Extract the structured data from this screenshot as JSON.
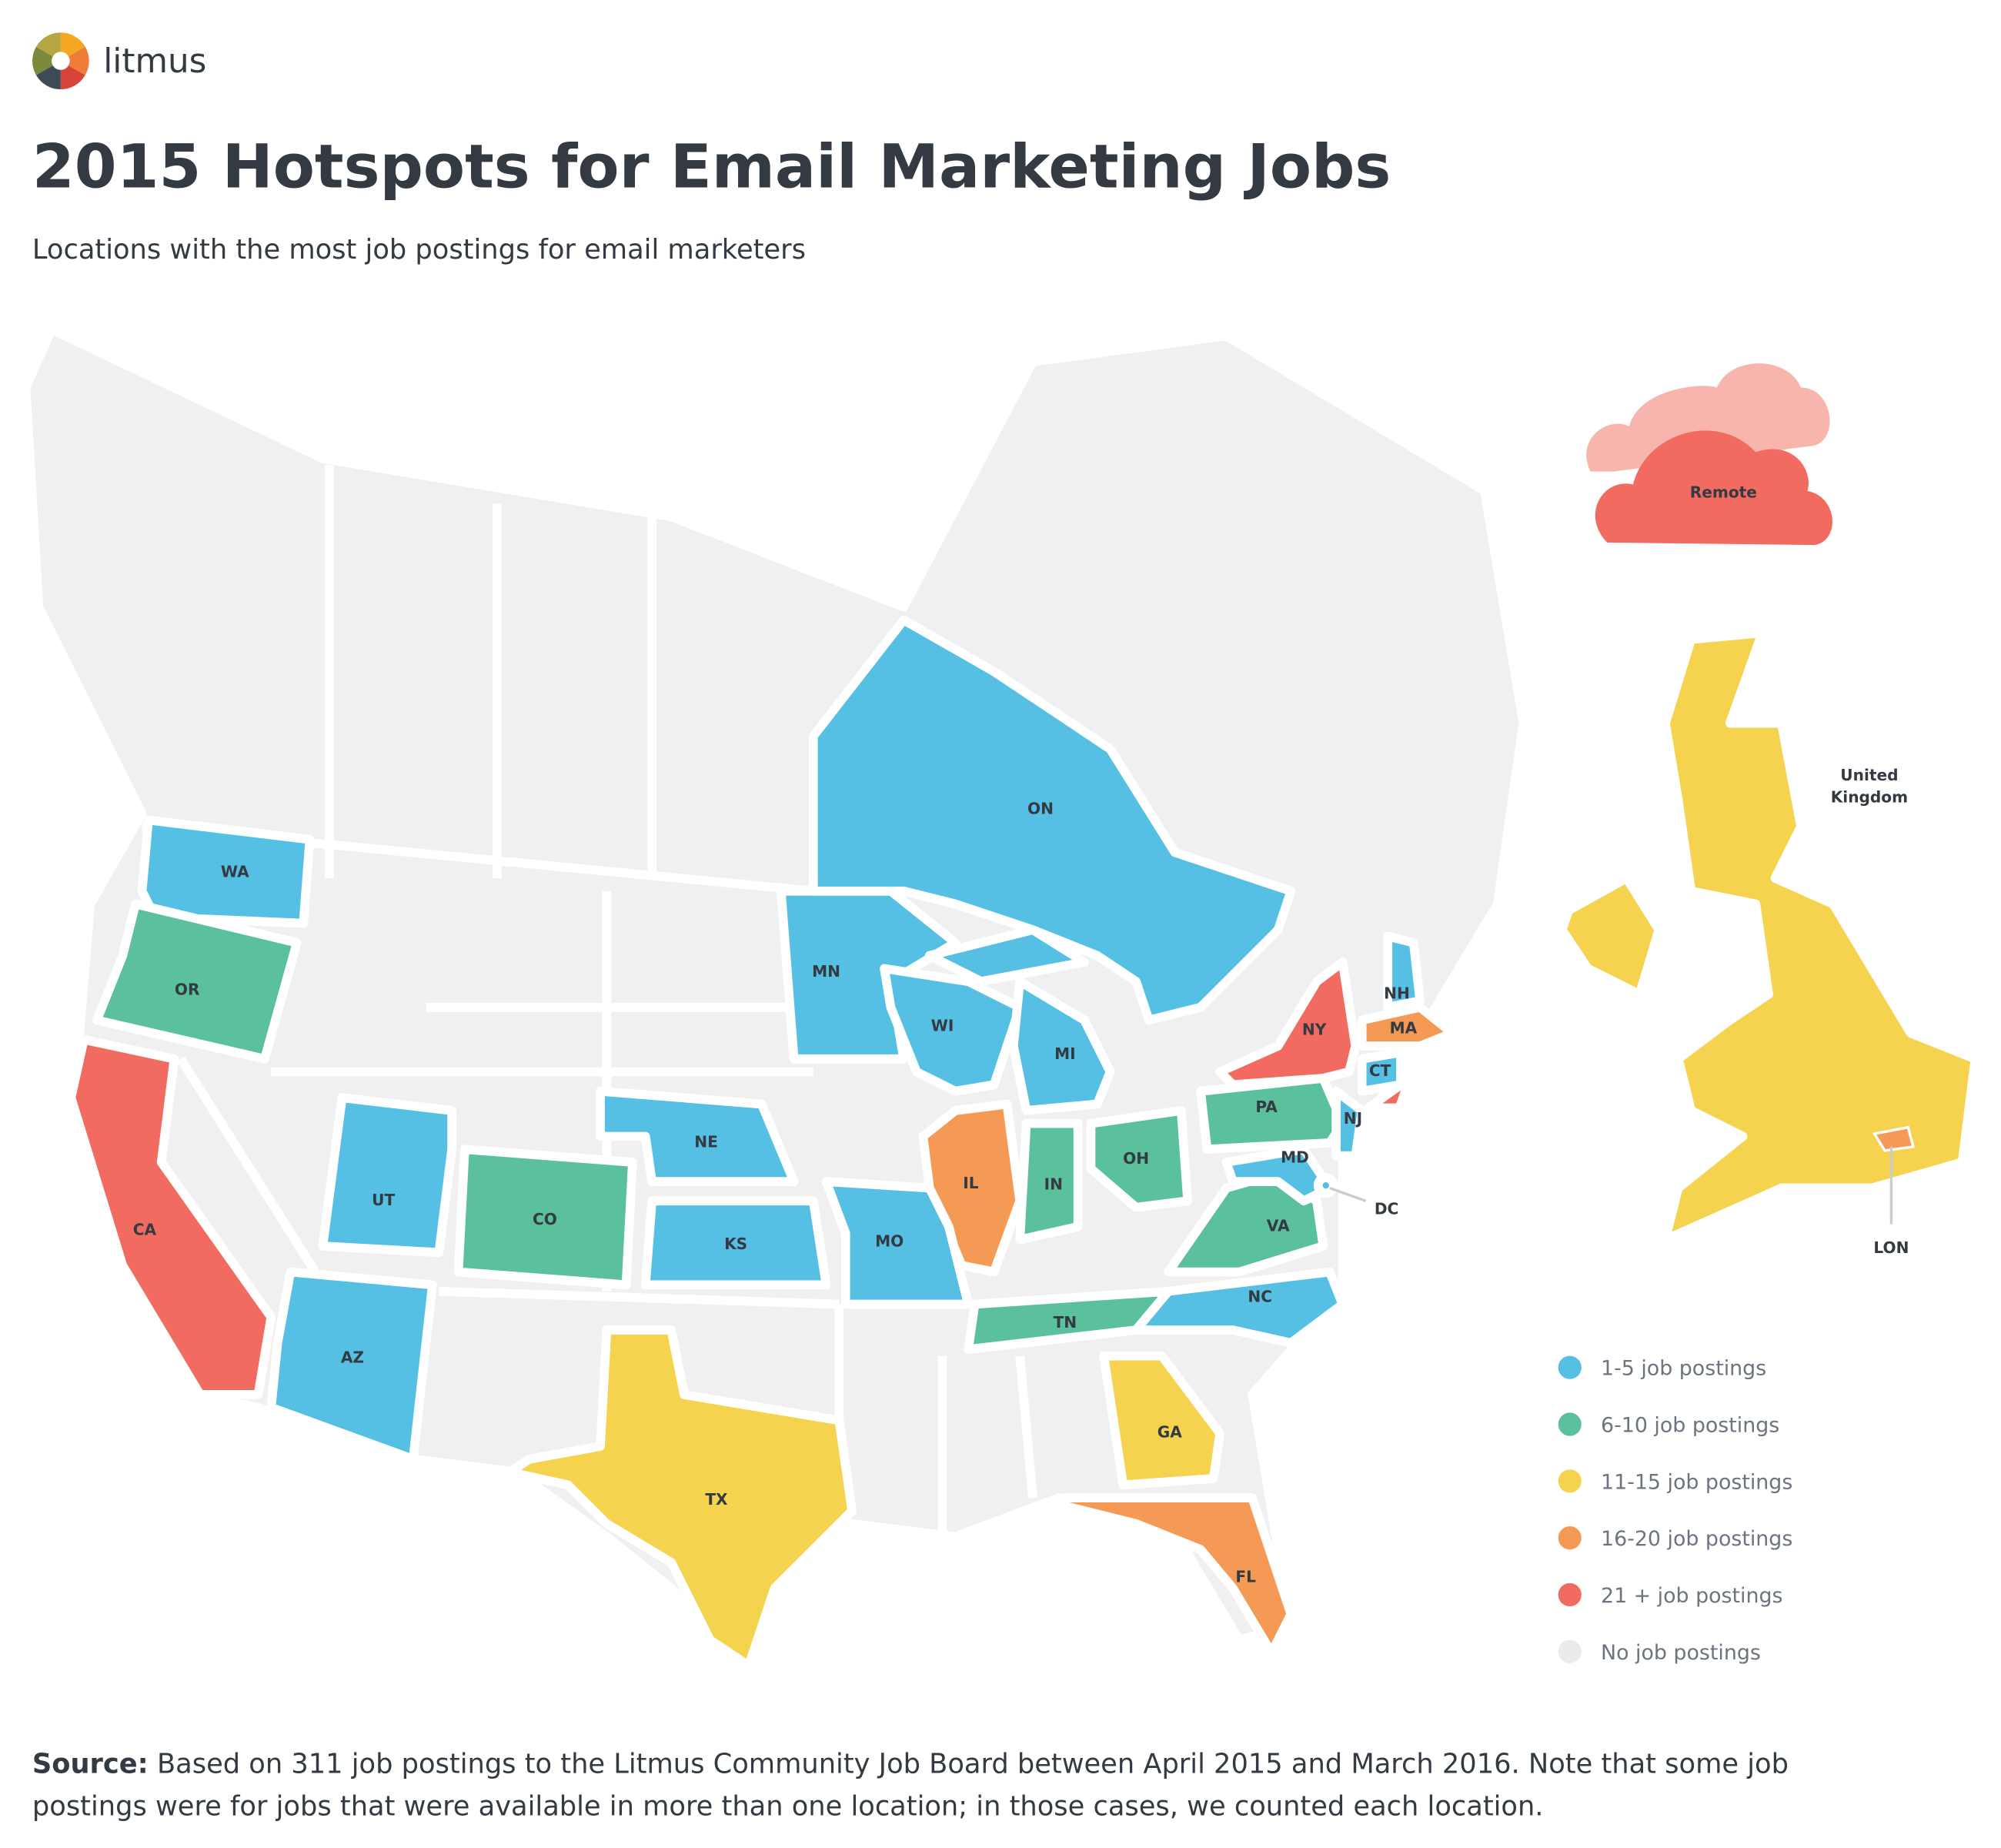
{
  "logo": "litmus",
  "title": "2015 Hotspots for Email Marketing Jobs",
  "subtitle": "Locations with the most job postings for email marketers",
  "land_color": "#f0f0f2",
  "legend": [
    {
      "label": "1-5 job postings",
      "color": "#55c0e3"
    },
    {
      "label": "6-10 job postings",
      "color": "#5bc19d"
    },
    {
      "label": "11-15 job postings",
      "color": "#f5d34e"
    },
    {
      "label": "16-20 job postings",
      "color": "#f59a55"
    },
    {
      "label": "21 + job postings",
      "color": "#f26b61"
    },
    {
      "label": "No job postings",
      "color": "#ebebed"
    }
  ],
  "regions": [
    {
      "label": "WA",
      "color": "#55c0e3"
    },
    {
      "label": "OR",
      "color": "#5bc19d"
    },
    {
      "label": "CA",
      "color": "#f26b61"
    },
    {
      "label": "UT",
      "color": "#55c0e3"
    },
    {
      "label": "AZ",
      "color": "#55c0e3"
    },
    {
      "label": "CO",
      "color": "#5bc19d"
    },
    {
      "label": "NE",
      "color": "#55c0e3"
    },
    {
      "label": "KS",
      "color": "#55c0e3"
    },
    {
      "label": "MN",
      "color": "#55c0e3"
    },
    {
      "label": "WI",
      "color": "#55c0e3"
    },
    {
      "label": "MI",
      "color": "#55c0e3"
    },
    {
      "label": "IL",
      "color": "#f59a55"
    },
    {
      "label": "IN",
      "color": "#5bc19d"
    },
    {
      "label": "OH",
      "color": "#5bc19d"
    },
    {
      "label": "MO",
      "color": "#55c0e3"
    },
    {
      "label": "TN",
      "color": "#5bc19d"
    },
    {
      "label": "NC",
      "color": "#55c0e3"
    },
    {
      "label": "VA",
      "color": "#5bc19d"
    },
    {
      "label": "PA",
      "color": "#5bc19d"
    },
    {
      "label": "NY",
      "color": "#f26b61"
    },
    {
      "label": "NJ",
      "color": "#55c0e3"
    },
    {
      "label": "MD",
      "color": "#55c0e3"
    },
    {
      "label": "DC",
      "color": "#55c0e3"
    },
    {
      "label": "CT",
      "color": "#55c0e3"
    },
    {
      "label": "MA",
      "color": "#f59a55"
    },
    {
      "label": "NH",
      "color": "#55c0e3"
    },
    {
      "label": "ON",
      "color": "#55c0e3"
    },
    {
      "label": "TX",
      "color": "#f5d34e"
    },
    {
      "label": "GA",
      "color": "#f5d34e"
    },
    {
      "label": "FL",
      "color": "#f59a55"
    },
    {
      "label": "LON",
      "color": "#f59a55"
    },
    {
      "label": "Remote",
      "color": "#f26b61"
    }
  ],
  "uk": {
    "label": [
      "United",
      "Kingdom"
    ],
    "color": "#f5d34e"
  },
  "source": {
    "label": "Source:",
    "lines": [
      "Based on 311 job postings to the Litmus Community Job Board between April 2015 and March 2016. Note that some job",
      "postings were for jobs that were available in more than one location; in those cases, we counted each location."
    ]
  }
}
